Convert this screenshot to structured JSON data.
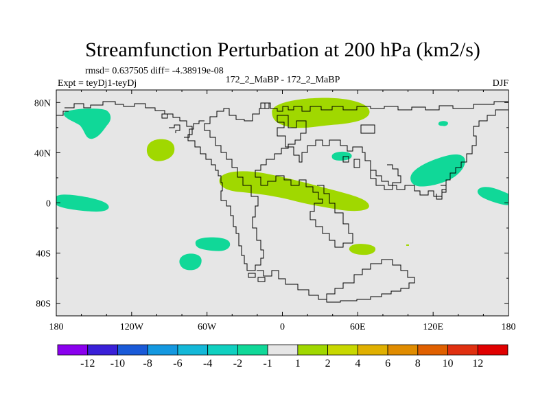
{
  "chart_data": {
    "type": "contour-map",
    "title": "Streamfunction Perturbation at 200 hPa (km2/s)",
    "stats_line": "rmsd= 0.637505 diff= -4.38919e-08",
    "left_label": "Expt = teyDj1-teyDj",
    "center_label": "172_2_MaBP - 172_2_MaBP",
    "right_label": "DJF",
    "x_axis": {
      "range": [
        -180,
        180
      ],
      "ticks": [
        -180,
        -120,
        -60,
        0,
        60,
        120,
        180
      ],
      "tick_labels": [
        "180",
        "120W",
        "60W",
        "0",
        "60E",
        "120E",
        "180"
      ]
    },
    "y_axis": {
      "range": [
        -90,
        90
      ],
      "ticks": [
        80,
        40,
        0,
        -40,
        -80
      ],
      "tick_labels": [
        "80N",
        "40N",
        "0",
        "40S",
        "80S"
      ]
    },
    "background_color": "#e6e6e6",
    "colorbar": {
      "labels": [
        "-12",
        "-10",
        "-8",
        "-6",
        "-4",
        "-2",
        "-1",
        "1",
        "2",
        "4",
        "6",
        "8",
        "10",
        "12"
      ],
      "colors": [
        "#8a00ee",
        "#3a20d8",
        "#1a5ad8",
        "#1498e0",
        "#14b8d8",
        "#10d0c0",
        "#10d898",
        "#e6e6e6",
        "#a0d800",
        "#c8d800",
        "#e0b000",
        "#e08c00",
        "#e06000",
        "#e03010",
        "#e00000"
      ]
    },
    "anomalies": [
      {
        "sign": "negative",
        "color": "#10d898",
        "lon": -145,
        "lat": 62,
        "note": "NE Pacific / Alaska"
      },
      {
        "sign": "positive",
        "color": "#a0d800",
        "lon": -97,
        "lat": 42,
        "note": "North America"
      },
      {
        "sign": "positive",
        "color": "#a0d800",
        "lon": 30,
        "lat": 70,
        "note": "Scandinavia / Barents"
      },
      {
        "sign": "negative",
        "color": "#10d898",
        "lon": 47,
        "lat": 37,
        "note": "Caspian"
      },
      {
        "sign": "negative",
        "color": "#10d898",
        "lon": 125,
        "lat": 23,
        "note": "East Asia"
      },
      {
        "sign": "negative",
        "color": "#10d898",
        "lon": 128,
        "lat": 63,
        "note": "Siberia (small)"
      },
      {
        "sign": "positive",
        "color": "#a0d800",
        "lon": 10,
        "lat": 10,
        "note": "Africa / Arabia band"
      },
      {
        "sign": "negative",
        "color": "#10d898",
        "lon": -160,
        "lat": 0,
        "note": "Equatorial Pacific (west)"
      },
      {
        "sign": "negative",
        "color": "#10d898",
        "lon": 170,
        "lat": 5,
        "note": "Equatorial Pacific (east)"
      },
      {
        "sign": "negative",
        "color": "#10d898",
        "lon": -55,
        "lat": -34,
        "note": "South Atlantic"
      },
      {
        "sign": "negative",
        "color": "#10d898",
        "lon": -72,
        "lat": -47,
        "note": "Patagonia"
      },
      {
        "sign": "positive",
        "color": "#a0d800",
        "lon": 63,
        "lat": -37,
        "note": "South Indian Ocean"
      }
    ]
  }
}
